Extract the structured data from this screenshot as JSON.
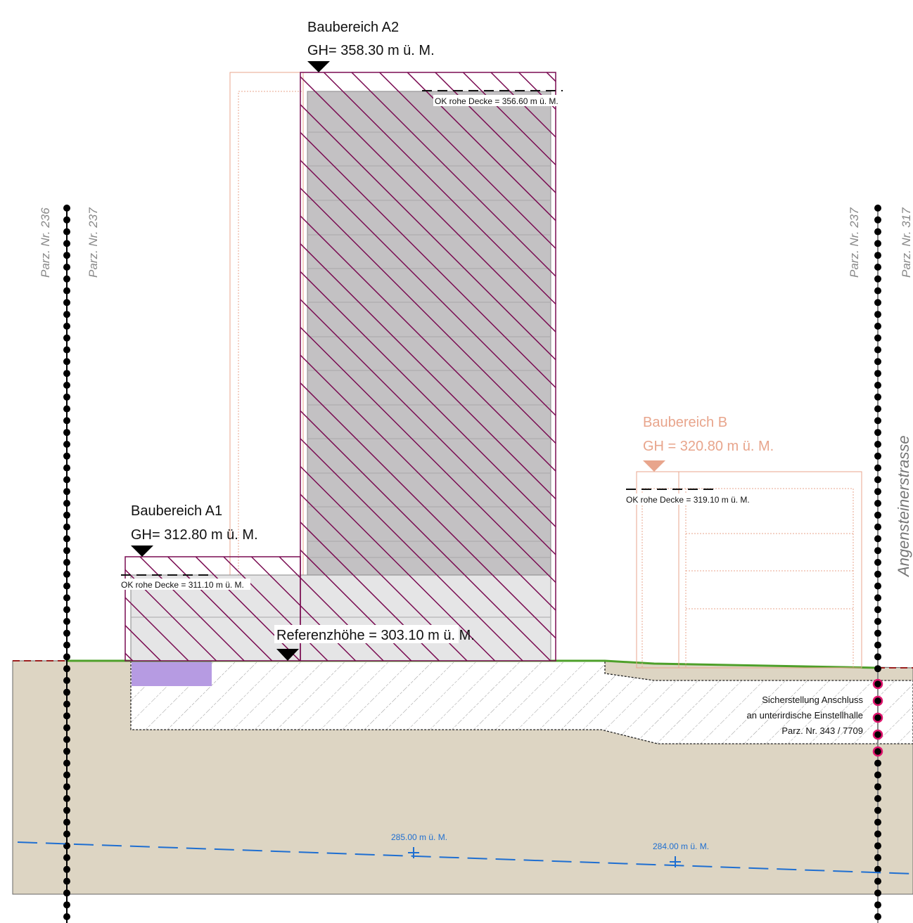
{
  "baubereich_a2": {
    "title": "Baubereich A2",
    "height": "GH= 358.30 m  ü. M.",
    "ok_decke": "OK rohe Decke = 356.60 m ü. M."
  },
  "baubereich_a1": {
    "title": "Baubereich A1",
    "height": "GH= 312.80 m  ü. M.",
    "ok_decke": "OK rohe Decke = 311.10 m ü. M."
  },
  "baubereich_b": {
    "title": "Baubereich B",
    "height": "GH = 320.80 m ü. M.",
    "ok_decke": "OK rohe Decke = 319.10 m ü. M."
  },
  "referenz": "Referenzhöhe = 303.10 m ü. M.",
  "parcels": {
    "left_outer": "Parz. Nr. 236",
    "left_inner": "Parz. Nr. 237",
    "right_inner": "Parz. Nr. 237",
    "right_outer": "Parz. Nr. 317"
  },
  "street": "Angensteinerstrasse",
  "note": {
    "line1": "Sicherstellung Anschluss",
    "line2": "an unterirdische Einstellhalle",
    "line3": "Parz. Nr. 343 / 7709"
  },
  "groundwater": {
    "label1": "285.00 m ü. M.",
    "label2": "284.00 m ü. M."
  },
  "colors": {
    "ground": "#ddd5c3",
    "hatch": "#7a0c52",
    "tower_fill": "#c3c1c3",
    "podium_fill": "#e5e5e6",
    "terrain": "#4ea02a",
    "groundwater": "#1f6fd1",
    "outline_b": "#e8a58c",
    "purple_box": "#b69be2"
  }
}
